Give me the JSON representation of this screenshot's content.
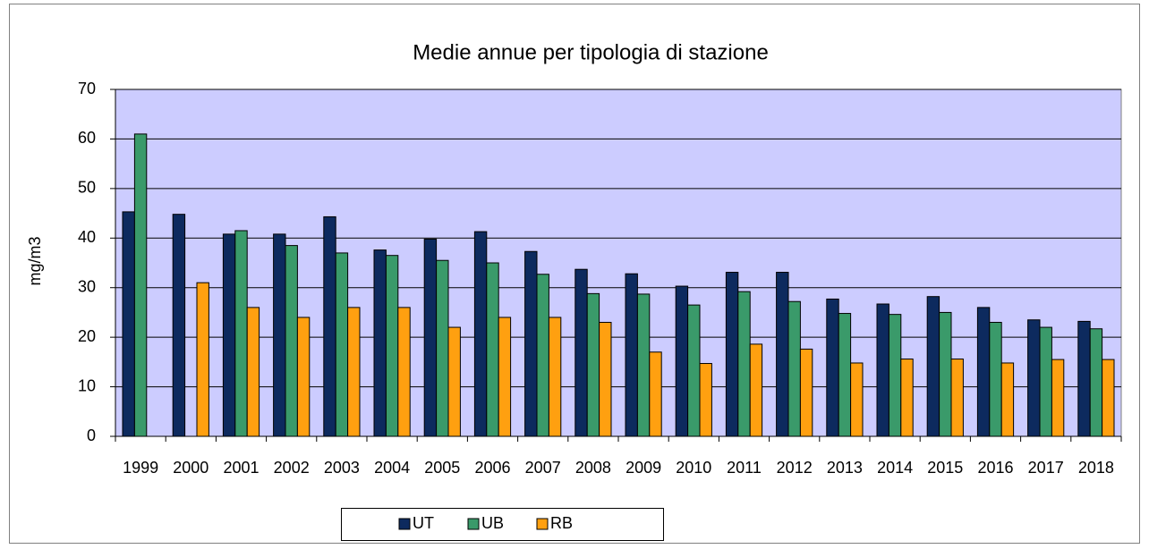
{
  "chart_data": {
    "type": "bar",
    "title": "Medie annue per tipologia di stazione",
    "y_label": "mg/m3",
    "categories": [
      "1999",
      "2000",
      "2001",
      "2002",
      "2003",
      "2004",
      "2005",
      "2006",
      "2007",
      "2008",
      "2009",
      "2010",
      "2011",
      "2012",
      "2013",
      "2014",
      "2015",
      "2016",
      "2017",
      "2018"
    ],
    "series": [
      {
        "name": "UT",
        "color": "#0d2a5e",
        "values": [
          45.3,
          44.8,
          40.8,
          40.8,
          44.3,
          37.6,
          39.8,
          41.3,
          37.3,
          33.7,
          32.8,
          30.3,
          33.1,
          33.1,
          27.7,
          26.7,
          28.2,
          26,
          23.5,
          23.2
        ]
      },
      {
        "name": "UB",
        "color": "#3a9a6a",
        "values": [
          61,
          null,
          41.5,
          38.5,
          37,
          36.5,
          35.5,
          35,
          32.7,
          28.8,
          28.7,
          26.5,
          29.2,
          27.2,
          24.8,
          24.6,
          25,
          23,
          22,
          21.7
        ]
      },
      {
        "name": "RB",
        "color": "#ffa010",
        "values": [
          null,
          31,
          26,
          24,
          26,
          26,
          22,
          24,
          24,
          23,
          17,
          14.7,
          18.6,
          17.6,
          14.8,
          15.6,
          15.6,
          14.8,
          15.5,
          15.5
        ]
      }
    ],
    "ylim": [
      0,
      70
    ],
    "yticks": [
      0,
      10,
      20,
      30,
      40,
      50,
      60,
      70
    ],
    "grid": true,
    "legend": "bottom"
  }
}
